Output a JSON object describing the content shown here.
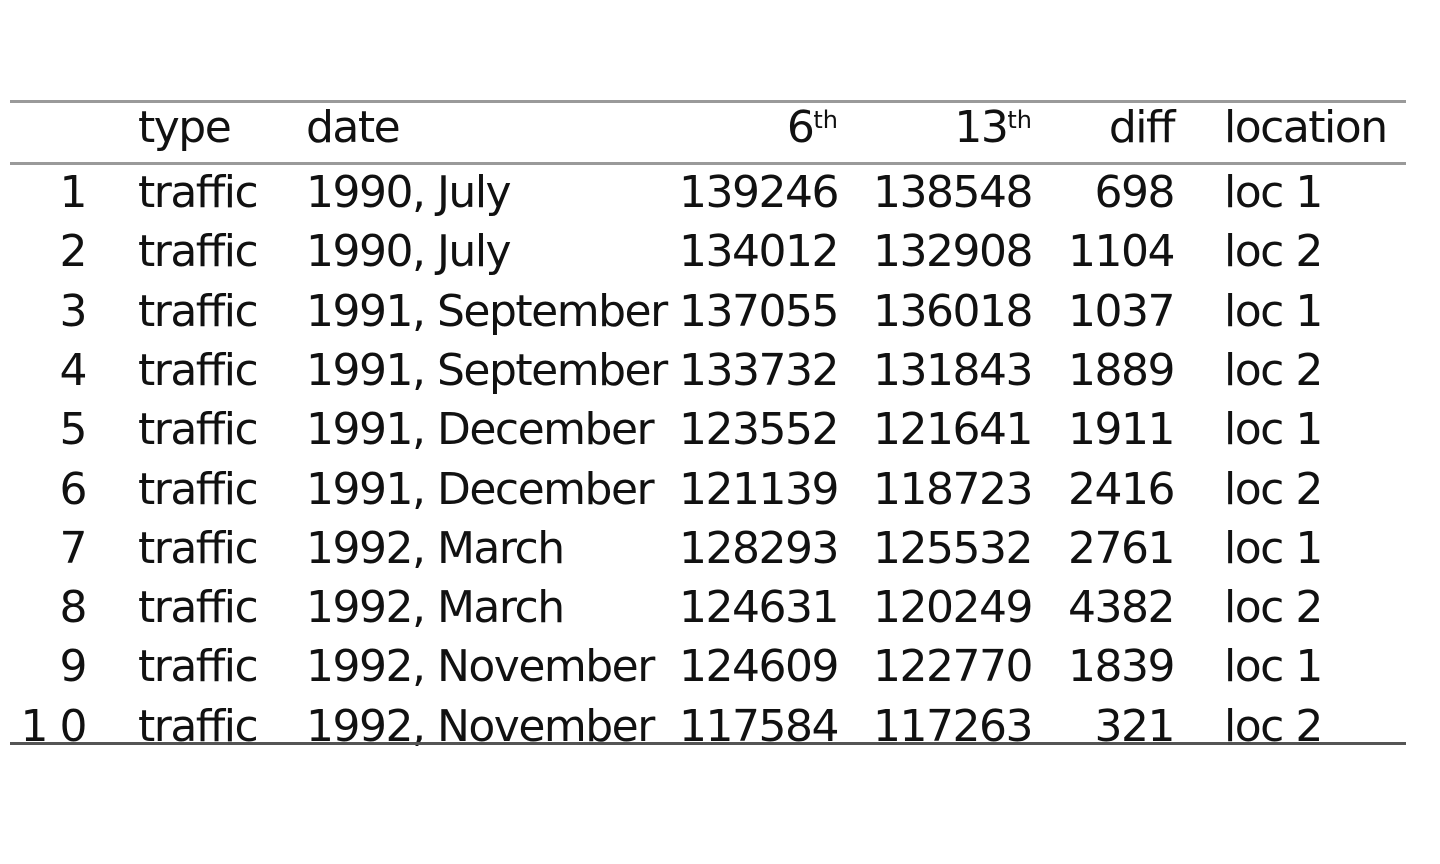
{
  "table": {
    "headers": {
      "index": "",
      "type": "type",
      "date": "date",
      "d6_base": "6",
      "d6_sup": "th",
      "d13_base": "13",
      "d13_sup": "th",
      "diff": "diff",
      "location": "location"
    },
    "rows": [
      {
        "index": "1",
        "type": "traffic",
        "date": "1990, July",
        "d6": "139246",
        "d13": "138548",
        "diff": "698",
        "location": "loc 1"
      },
      {
        "index": "2",
        "type": "traffic",
        "date": "1990, July",
        "d6": "134012",
        "d13": "132908",
        "diff": "1104",
        "location": "loc 2"
      },
      {
        "index": "3",
        "type": "traffic",
        "date": "1991, September",
        "d6": "137055",
        "d13": "136018",
        "diff": "1037",
        "location": "loc 1"
      },
      {
        "index": "4",
        "type": "traffic",
        "date": "1991, September",
        "d6": "133732",
        "d13": "131843",
        "diff": "1889",
        "location": "loc 2"
      },
      {
        "index": "5",
        "type": "traffic",
        "date": "1991, December",
        "d6": "123552",
        "d13": "121641",
        "diff": "1911",
        "location": "loc 1"
      },
      {
        "index": "6",
        "type": "traffic",
        "date": "1991, December",
        "d6": "121139",
        "d13": "118723",
        "diff": "2416",
        "location": "loc 2"
      },
      {
        "index": "7",
        "type": "traffic",
        "date": "1992, March",
        "d6": "128293",
        "d13": "125532",
        "diff": "2761",
        "location": "loc 1"
      },
      {
        "index": "8",
        "type": "traffic",
        "date": "1992, March",
        "d6": "124631",
        "d13": "120249",
        "diff": "4382",
        "location": "loc 2"
      },
      {
        "index": "9",
        "type": "traffic",
        "date": "1992, November",
        "d6": "124609",
        "d13": "122770",
        "diff": "1839",
        "location": "loc 1"
      },
      {
        "index": "1 0",
        "type": "traffic",
        "date": "1992, November",
        "d6": "117584",
        "d13": "117263",
        "diff": "321",
        "location": "loc 2"
      }
    ]
  }
}
